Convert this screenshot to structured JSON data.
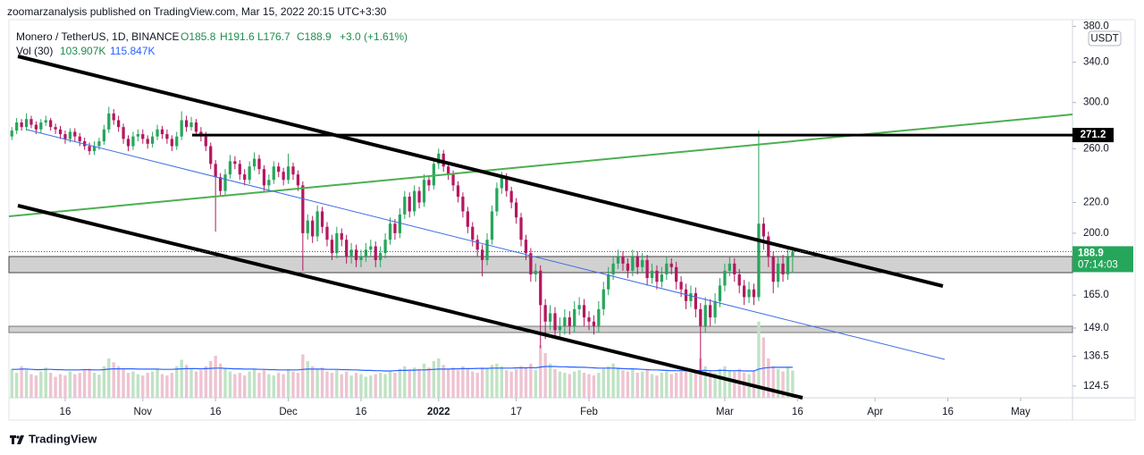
{
  "published": "zoomarzanalysis published on TradingView.com, Mar 15, 2022 20:15 UTC+3:30",
  "footer": "TradingView",
  "chart_data": {
    "type": "candlestick",
    "title": "Monero / TetherUS, 1D, BINANCE",
    "ohlc_labels": [
      "O185.8",
      "H191.6",
      "L176.7",
      "C188.9",
      "+3.0 (+1.61%)"
    ],
    "volume_label": "Vol (30)",
    "volume_value_labels": [
      "103.907K",
      "115.847K"
    ],
    "currency": "USDT",
    "countdown": "07:14:03",
    "hline": 271.2,
    "log_scale": true,
    "grid": false,
    "up_color": "#26a65b",
    "down_color": "#b5175f",
    "volume_up_color": "#bfe3c4",
    "volume_down_color": "#eec3d2",
    "volume_ma_color": "#2962ff",
    "xlim": [
      -0.6,
      218.7
    ],
    "xticks": [
      {
        "value": 11,
        "label": "16"
      },
      {
        "value": 27,
        "label": "Nov"
      },
      {
        "value": 42,
        "label": "16"
      },
      {
        "value": 57,
        "label": "Dec"
      },
      {
        "value": 72,
        "label": "16"
      },
      {
        "value": 88,
        "label": "2022"
      },
      {
        "value": 104,
        "label": "17"
      },
      {
        "value": 119,
        "label": "Feb"
      },
      {
        "value": 147,
        "label": "Mar"
      },
      {
        "value": 162,
        "label": "16"
      },
      {
        "value": 178,
        "label": "Apr"
      },
      {
        "value": 193,
        "label": "16"
      },
      {
        "value": 208,
        "label": "May"
      }
    ],
    "ylim": [
      120,
      388
    ],
    "yticks": [
      {
        "value": 380,
        "label": "380.0"
      },
      {
        "value": 340,
        "label": "340.0"
      },
      {
        "value": 300,
        "label": "300.0"
      },
      {
        "value": 260,
        "label": "260.0"
      },
      {
        "value": 220,
        "label": "220.0"
      },
      {
        "value": 200,
        "label": "200.0"
      },
      {
        "value": 165,
        "label": "165.0"
      },
      {
        "value": 149,
        "label": "149.0"
      },
      136.5,
      124.5
    ],
    "vlim": [
      0,
      340
    ],
    "open": [
      270,
      275,
      282,
      278,
      285,
      280,
      276,
      282,
      284,
      278,
      276,
      272,
      268,
      274,
      270,
      266,
      262,
      258,
      262,
      266,
      276,
      290,
      284,
      278,
      268,
      262,
      270,
      272,
      268,
      264,
      270,
      276,
      272,
      268,
      262,
      270,
      284,
      278,
      282,
      274,
      270,
      262,
      248,
      238,
      228,
      240,
      250,
      248,
      240,
      236,
      246,
      252,
      244,
      232,
      236,
      246,
      242,
      236,
      246,
      240,
      232,
      200,
      208,
      198,
      214,
      204,
      196,
      188,
      200,
      196,
      186,
      190,
      184,
      186,
      190,
      192,
      184,
      188,
      196,
      206,
      200,
      212,
      224,
      214,
      228,
      220,
      236,
      232,
      248,
      256,
      246,
      240,
      232,
      224,
      214,
      204,
      196,
      190,
      184,
      196,
      214,
      230,
      238,
      228,
      220,
      210,
      196,
      188,
      176,
      178,
      160,
      152,
      156,
      148,
      150,
      154,
      150,
      158,
      160,
      154,
      152,
      150,
      158,
      168,
      176,
      182,
      186,
      182,
      178,
      186,
      180,
      184,
      174,
      178,
      172,
      176,
      182,
      180,
      172,
      168,
      162,
      166,
      158,
      150,
      160,
      154,
      162,
      170,
      178,
      182,
      176,
      170,
      164,
      168,
      164,
      206,
      198,
      186,
      172,
      182,
      176,
      185.8
    ],
    "high": [
      278,
      286,
      285,
      290,
      288,
      283,
      285,
      288,
      286,
      281,
      279,
      275,
      277,
      277,
      273,
      269,
      265,
      266,
      269,
      280,
      296,
      294,
      288,
      281,
      271,
      274,
      276,
      276,
      271,
      274,
      280,
      279,
      276,
      271,
      274,
      292,
      288,
      287,
      285,
      278,
      274,
      265,
      251,
      241,
      244,
      255,
      254,
      251,
      244,
      250,
      257,
      255,
      247,
      240,
      250,
      249,
      245,
      256,
      249,
      243,
      235,
      212,
      211,
      218,
      217,
      207,
      199,
      204,
      203,
      199,
      194,
      193,
      190,
      194,
      196,
      195,
      192,
      200,
      210,
      209,
      216,
      228,
      227,
      232,
      231,
      240,
      239,
      252,
      260,
      259,
      249,
      243,
      235,
      227,
      217,
      207,
      199,
      193,
      200,
      218,
      234,
      242,
      241,
      231,
      223,
      213,
      199,
      191,
      182,
      181,
      163,
      160,
      159,
      154,
      158,
      157,
      162,
      164,
      163,
      157,
      155,
      162,
      172,
      180,
      186,
      190,
      189,
      185,
      190,
      189,
      188,
      187,
      182,
      181,
      180,
      186,
      185,
      183,
      175,
      171,
      170,
      169,
      161,
      164,
      163,
      166,
      174,
      182,
      186,
      185,
      179,
      173,
      172,
      171,
      275,
      210,
      201,
      189,
      186,
      187,
      190,
      191.6
    ],
    "low": [
      267,
      272,
      275,
      275,
      277,
      272,
      273,
      279,
      275,
      272,
      268,
      264,
      265,
      266,
      262,
      259,
      255,
      255,
      259,
      263,
      273,
      280,
      274,
      264,
      258,
      259,
      266,
      264,
      260,
      261,
      267,
      268,
      264,
      258,
      259,
      267,
      274,
      275,
      270,
      266,
      258,
      244,
      201,
      224,
      225,
      237,
      244,
      236,
      232,
      233,
      243,
      240,
      228,
      228,
      233,
      238,
      232,
      233,
      236,
      228,
      178,
      196,
      194,
      195,
      200,
      192,
      184,
      185,
      192,
      182,
      182,
      180,
      180,
      183,
      186,
      180,
      180,
      185,
      193,
      196,
      197,
      209,
      210,
      211,
      216,
      217,
      228,
      229,
      244,
      242,
      236,
      228,
      220,
      210,
      200,
      192,
      186,
      175,
      181,
      193,
      211,
      226,
      224,
      216,
      206,
      192,
      184,
      172,
      172,
      140,
      144,
      148,
      144,
      144,
      146,
      146,
      147,
      155,
      150,
      148,
      146,
      147,
      155,
      165,
      173,
      179,
      178,
      174,
      175,
      176,
      177,
      170,
      171,
      168,
      169,
      173,
      176,
      168,
      164,
      158,
      159,
      154,
      131,
      147,
      150,
      151,
      159,
      167,
      175,
      172,
      166,
      160,
      161,
      160,
      162,
      190,
      180,
      166,
      169,
      172,
      173,
      176.7
    ],
    "close": [
      275,
      282,
      278,
      285,
      280,
      276,
      282,
      284,
      278,
      276,
      272,
      268,
      274,
      270,
      266,
      262,
      258,
      262,
      266,
      276,
      290,
      284,
      278,
      268,
      262,
      270,
      272,
      268,
      264,
      270,
      276,
      272,
      268,
      262,
      270,
      284,
      278,
      282,
      274,
      270,
      262,
      248,
      238,
      228,
      240,
      250,
      248,
      240,
      236,
      246,
      252,
      244,
      232,
      236,
      246,
      242,
      236,
      246,
      240,
      232,
      200,
      208,
      198,
      214,
      204,
      196,
      188,
      200,
      196,
      186,
      190,
      184,
      186,
      190,
      192,
      184,
      188,
      196,
      206,
      200,
      212,
      224,
      214,
      228,
      220,
      236,
      232,
      248,
      256,
      246,
      240,
      232,
      224,
      214,
      204,
      196,
      190,
      184,
      196,
      214,
      230,
      238,
      228,
      220,
      210,
      196,
      188,
      176,
      178,
      160,
      152,
      156,
      148,
      150,
      154,
      150,
      158,
      160,
      154,
      152,
      150,
      158,
      168,
      176,
      182,
      186,
      182,
      178,
      186,
      180,
      184,
      174,
      178,
      172,
      176,
      182,
      180,
      172,
      168,
      162,
      166,
      158,
      150,
      160,
      154,
      162,
      170,
      178,
      182,
      176,
      170,
      164,
      168,
      164,
      206,
      198,
      186,
      172,
      182,
      176,
      185.8,
      188.9
    ],
    "volume": [
      110,
      95,
      120,
      105,
      90,
      85,
      100,
      115,
      95,
      80,
      90,
      85,
      100,
      90,
      95,
      105,
      110,
      95,
      88,
      120,
      150,
      135,
      120,
      110,
      95,
      100,
      90,
      85,
      95,
      100,
      110,
      90,
      85,
      95,
      120,
      145,
      125,
      110,
      100,
      105,
      120,
      140,
      160,
      130,
      110,
      100,
      90,
      95,
      85,
      100,
      110,
      95,
      105,
      90,
      85,
      95,
      90,
      110,
      100,
      95,
      165,
      140,
      120,
      110,
      115,
      100,
      95,
      105,
      90,
      100,
      85,
      95,
      90,
      80,
      85,
      90,
      95,
      90,
      100,
      95,
      110,
      120,
      105,
      115,
      110,
      130,
      115,
      140,
      150,
      125,
      110,
      115,
      105,
      120,
      110,
      100,
      95,
      115,
      110,
      125,
      130,
      120,
      105,
      100,
      110,
      120,
      115,
      130,
      105,
      200,
      170,
      130,
      110,
      100,
      95,
      90,
      100,
      105,
      95,
      90,
      85,
      95,
      110,
      120,
      130,
      115,
      105,
      100,
      110,
      95,
      100,
      105,
      90,
      85,
      95,
      100,
      90,
      95,
      100,
      110,
      95,
      105,
      150,
      120,
      100,
      95,
      110,
      120,
      105,
      100,
      110,
      95,
      90,
      100,
      290,
      230,
      150,
      120,
      110,
      100,
      115,
      103.907
    ],
    "volume_ma": [
      108,
      108,
      109,
      109,
      108,
      107,
      107,
      108,
      108,
      107,
      107,
      106,
      106,
      106,
      106,
      107,
      107,
      106,
      106,
      107,
      109,
      110,
      110,
      110,
      110,
      110,
      109,
      109,
      109,
      109,
      109,
      108,
      108,
      108,
      109,
      110,
      111,
      111,
      111,
      110,
      111,
      112,
      113,
      113,
      112,
      111,
      110,
      110,
      109,
      109,
      109,
      108,
      108,
      107,
      107,
      106,
      106,
      106,
      106,
      106,
      108,
      109,
      109,
      109,
      109,
      108,
      108,
      108,
      107,
      107,
      106,
      106,
      105,
      104,
      104,
      103,
      103,
      102,
      102,
      103,
      104,
      104,
      105,
      105,
      106,
      106,
      107,
      108,
      109,
      109,
      109,
      110,
      110,
      111,
      111,
      111,
      112,
      112,
      112,
      113,
      113,
      113,
      113,
      113,
      114,
      114,
      114,
      115,
      114,
      117,
      119,
      119,
      119,
      118,
      118,
      117,
      117,
      116,
      116,
      115,
      114,
      113,
      113,
      113,
      113,
      112,
      111,
      110,
      110,
      109,
      108,
      107,
      106,
      106,
      105,
      104,
      103,
      103,
      103,
      103,
      102,
      103,
      104,
      104,
      103,
      103,
      104,
      104,
      103,
      103,
      103,
      102,
      102,
      102,
      109,
      113,
      115,
      116,
      116,
      116,
      116,
      115.847
    ]
  }
}
